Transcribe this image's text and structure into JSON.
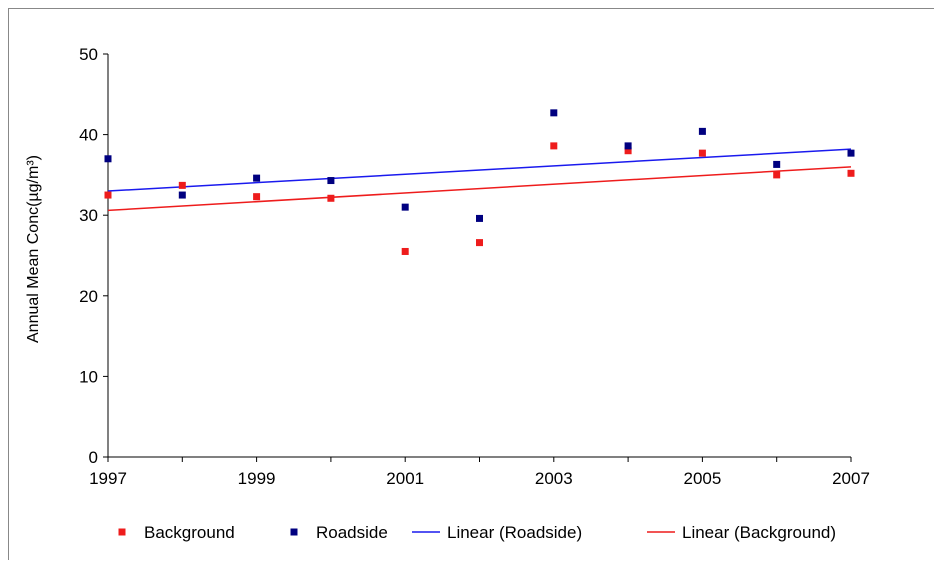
{
  "chart_data": {
    "type": "scatter",
    "title": "",
    "xlabel": "",
    "ylabel": "Annual Mean Conc(µg/m³)",
    "xlim": [
      1997,
      2007
    ],
    "ylim": [
      0,
      50
    ],
    "x_ticks": [
      1997,
      1999,
      2001,
      2003,
      2005,
      2007
    ],
    "y_ticks": [
      0,
      10,
      20,
      30,
      40,
      50
    ],
    "grid": false,
    "legend_position": "bottom",
    "series": [
      {
        "name": "Background",
        "color": "#ee1c1c",
        "x": [
          1997,
          1998,
          1999,
          2000,
          2001,
          2002,
          2003,
          2004,
          2005,
          2006,
          2007
        ],
        "values": [
          32.5,
          33.7,
          32.3,
          32.1,
          25.5,
          26.6,
          38.6,
          38.0,
          37.7,
          35.0,
          35.2
        ]
      },
      {
        "name": "Roadside",
        "color": "#000080",
        "x": [
          1997,
          1998,
          1999,
          2000,
          2001,
          2002,
          2003,
          2004,
          2005,
          2006,
          2007
        ],
        "values": [
          37.0,
          32.5,
          34.6,
          34.3,
          31.0,
          29.6,
          42.7,
          38.6,
          40.4,
          36.3,
          37.7
        ]
      }
    ],
    "trendlines": [
      {
        "name": "Linear (Roadside)",
        "color": "#1a1aee",
        "x": [
          1997,
          2007
        ],
        "values": [
          33.0,
          38.2
        ]
      },
      {
        "name": "Linear (Background)",
        "color": "#ee1c1c",
        "x": [
          1997,
          2007
        ],
        "values": [
          30.6,
          36.0
        ]
      }
    ]
  }
}
